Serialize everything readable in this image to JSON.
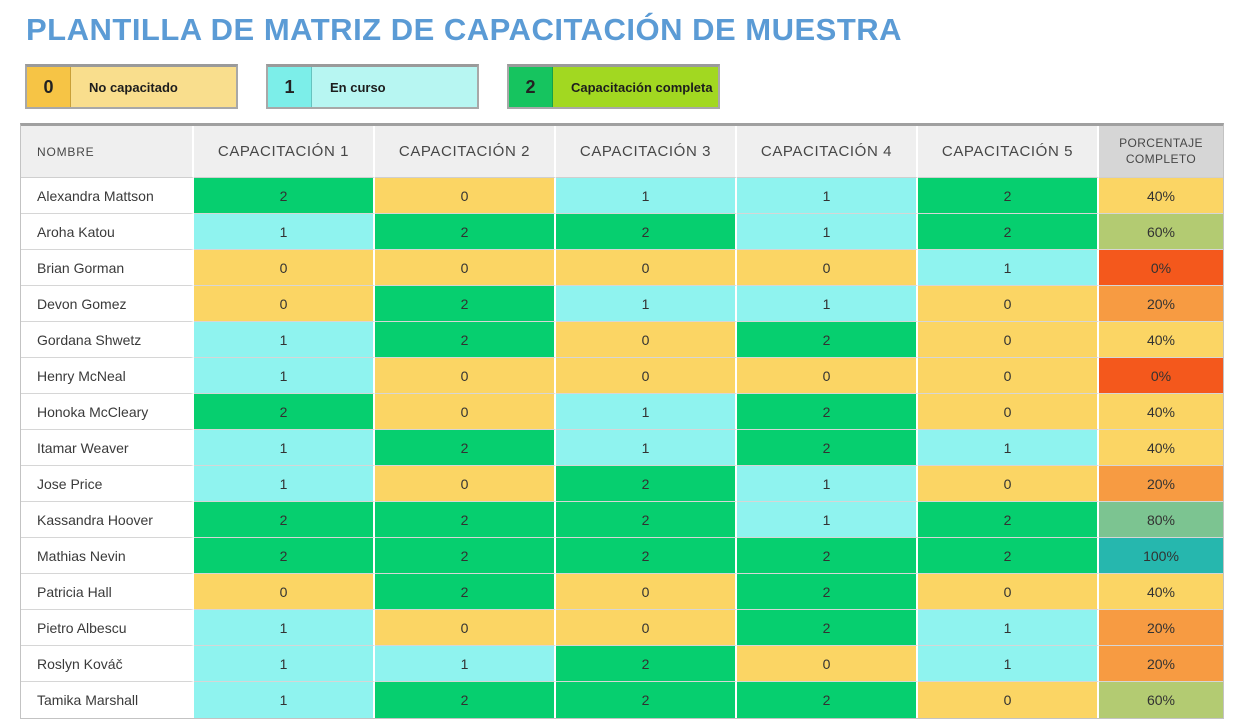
{
  "title": "PLANTILLA DE MATRIZ DE CAPACITACIÓN DE MUESTRA",
  "legend": [
    {
      "value": "0",
      "label": "No capacitado",
      "swatch_color": "#F6C445",
      "label_bg": "#F9DE8D"
    },
    {
      "value": "1",
      "label": "En curso",
      "swatch_color": "#7CEEE9",
      "label_bg": "#B7F6F2"
    },
    {
      "value": "2",
      "label": "Capacitación completa",
      "swatch_color": "#16C45F",
      "label_bg": "#A2D821"
    }
  ],
  "table": {
    "columns": [
      "NOMBRE",
      "CAPACITACIÓN 1",
      "CAPACITACIÓN 2",
      "CAPACITACIÓN 3",
      "CAPACITACIÓN 4",
      "CAPACITACIÓN 5",
      "PORCENTAJE COMPLETO"
    ],
    "rows": [
      {
        "name": "Alexandra Mattson",
        "scores": [
          2,
          0,
          1,
          1,
          2
        ],
        "percent": "40%"
      },
      {
        "name": "Aroha Katou",
        "scores": [
          1,
          2,
          2,
          1,
          2
        ],
        "percent": "60%"
      },
      {
        "name": "Brian Gorman",
        "scores": [
          0,
          0,
          0,
          0,
          1
        ],
        "percent": "0%"
      },
      {
        "name": "Devon Gomez",
        "scores": [
          0,
          2,
          1,
          1,
          0
        ],
        "percent": "20%"
      },
      {
        "name": "Gordana Shwetz",
        "scores": [
          1,
          2,
          0,
          2,
          0
        ],
        "percent": "40%"
      },
      {
        "name": "Henry McNeal",
        "scores": [
          1,
          0,
          0,
          0,
          0
        ],
        "percent": "0%"
      },
      {
        "name": "Honoka McCleary",
        "scores": [
          2,
          0,
          1,
          2,
          0
        ],
        "percent": "40%"
      },
      {
        "name": "Itamar Weaver",
        "scores": [
          1,
          2,
          1,
          2,
          1
        ],
        "percent": "40%"
      },
      {
        "name": "Jose Price",
        "scores": [
          1,
          0,
          2,
          1,
          0
        ],
        "percent": "20%"
      },
      {
        "name": "Kassandra Hoover",
        "scores": [
          2,
          2,
          2,
          1,
          2
        ],
        "percent": "80%"
      },
      {
        "name": "Mathias Nevin",
        "scores": [
          2,
          2,
          2,
          2,
          2
        ],
        "percent": "100%"
      },
      {
        "name": "Patricia Hall",
        "scores": [
          0,
          2,
          0,
          2,
          0
        ],
        "percent": "40%"
      },
      {
        "name": "Pietro Albescu",
        "scores": [
          1,
          0,
          0,
          2,
          1
        ],
        "percent": "20%"
      },
      {
        "name": "Roslyn Kováč",
        "scores": [
          1,
          1,
          2,
          0,
          1
        ],
        "percent": "20%"
      },
      {
        "name": "Tamika Marshall",
        "scores": [
          1,
          2,
          2,
          2,
          0
        ],
        "percent": "60%"
      }
    ]
  },
  "colors": {
    "title": "#5B9BD5",
    "scores": {
      "0": "#FBD564",
      "1": "#8FF3EF",
      "2": "#06CF6F"
    },
    "percent": {
      "0%": "#F4581C",
      "20%": "#F79B42",
      "40%": "#FBD564",
      "60%": "#B3CB72",
      "80%": "#7CC491",
      "100%": "#26B7AE"
    }
  }
}
